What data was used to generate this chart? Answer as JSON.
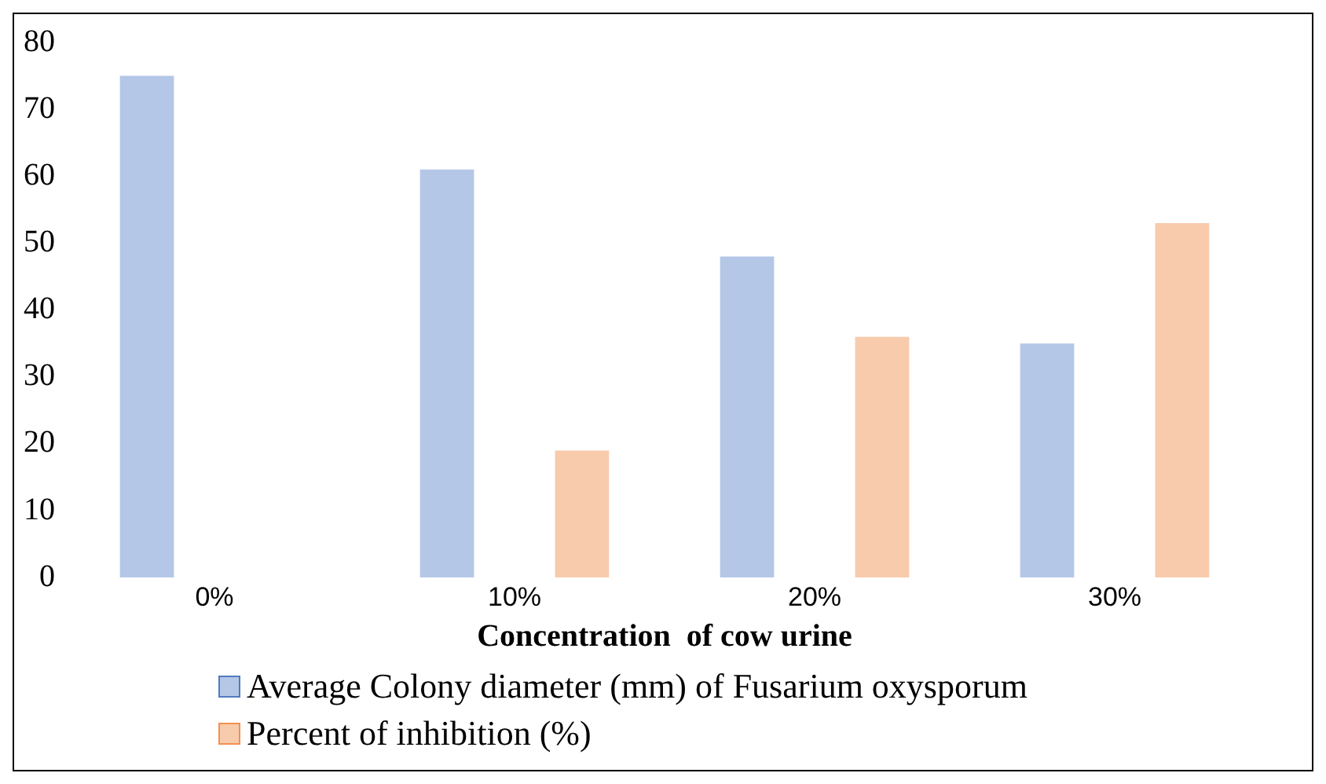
{
  "chart_data": {
    "type": "bar",
    "xlabel": "Concentration  of cow urine",
    "categories": [
      "0%",
      "10%",
      "20%",
      "30%"
    ],
    "series": [
      {
        "name": "Average Colony diameter (mm) of  Fusarium oxysporum",
        "color": "#b4c7e7",
        "values": [
          75,
          61,
          48,
          35
        ]
      },
      {
        "name": "Percent of inhibition (%)",
        "color": "#f8cbad",
        "values": [
          null,
          19,
          36,
          53
        ]
      }
    ],
    "ylim": [
      0,
      80
    ],
    "yticks": [
      0,
      10,
      20,
      30,
      40,
      50,
      60,
      70,
      80
    ],
    "grid": false,
    "legend": "bottom"
  }
}
